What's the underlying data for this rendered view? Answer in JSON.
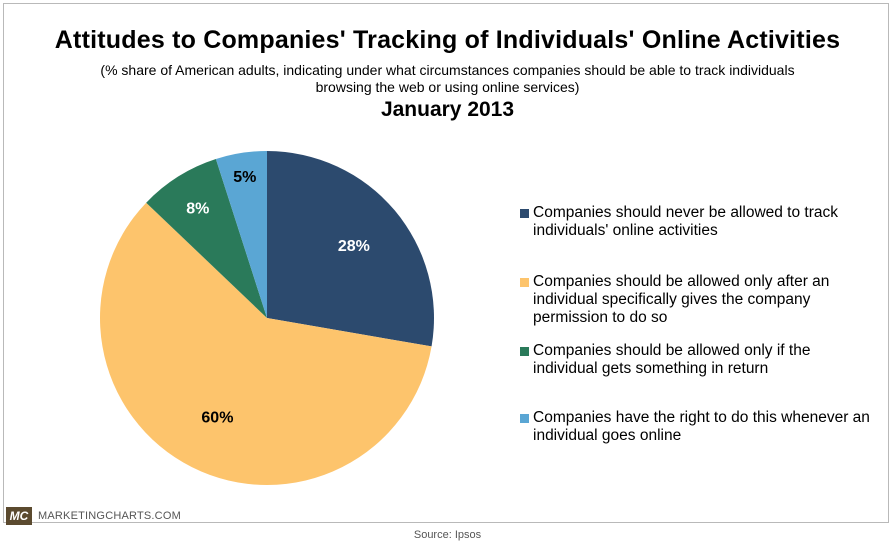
{
  "chart_data": {
    "type": "pie",
    "title": "Attitudes to Companies' Tracking of Individuals' Online Activities",
    "subtitle": "(% share of American adults, indicating under what circumstances companies should be able to track individuals browsing the web or using online services)",
    "period": "January 2013",
    "slices": [
      {
        "name": "Companies should never be allowed to track individuals' online activities",
        "value": 28,
        "label": "28%",
        "color": "#2c4a6e",
        "label_color": "#ffffff"
      },
      {
        "name": "Companies should be allowed only after an individual specifically gives the company permission to do so",
        "value": 60,
        "label": "60%",
        "color": "#fdc46c",
        "label_color": "#000000"
      },
      {
        "name": "Companies should be allowed only if the individual gets something in return",
        "value": 8,
        "label": "8%",
        "color": "#2a7a5a",
        "label_color": "#ffffff"
      },
      {
        "name": "Companies have the right to do this whenever an individual goes online",
        "value": 5,
        "label": "5%",
        "color": "#5aa6d4",
        "label_color": "#000000"
      }
    ],
    "legend_placement": "right"
  },
  "legend": {
    "items": [
      {
        "text": "Companies should never be allowed to track individuals' online activities",
        "color": "#2c4a6e"
      },
      {
        "text": "Companies should be allowed only after an individual specifically gives the company permission to do so",
        "color": "#fdc46c"
      },
      {
        "text": "Companies should be allowed only if the individual gets something in return",
        "color": "#2a7a5a"
      },
      {
        "text": "Companies have the right to do this whenever an individual goes online",
        "color": "#5aa6d4"
      }
    ]
  },
  "branding": {
    "logo_text": "MC",
    "name": "MARKETINGCHARTS.COM"
  },
  "source": "Source: Ipsos"
}
